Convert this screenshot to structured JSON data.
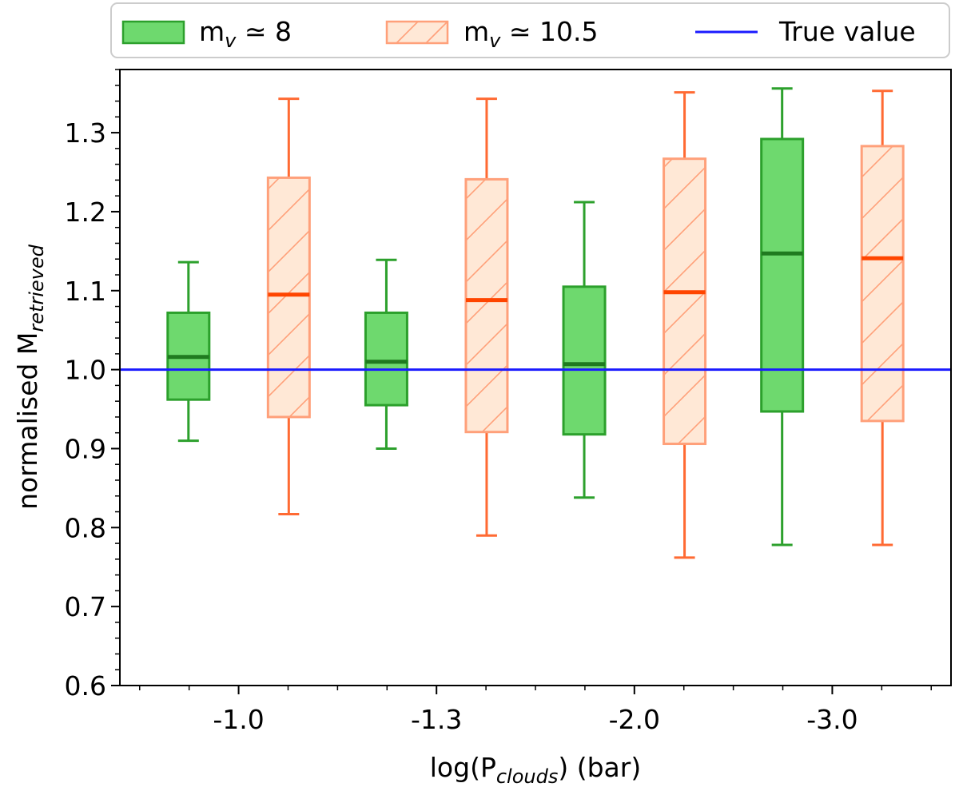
{
  "chart_data": {
    "type": "boxplot",
    "xlabel": {
      "prefix": "log(P",
      "sub": "clouds",
      "suffix": ") (bar)"
    },
    "ylabel": {
      "prefix": "normalised M",
      "sub": "retrieved"
    },
    "categories": [
      "-1.0",
      "-1.3",
      "-2.0",
      "-3.0"
    ],
    "ylim": [
      0.6,
      1.38
    ],
    "yticks": [
      "0.6",
      "0.7",
      "0.8",
      "0.9",
      "1.0",
      "1.1",
      "1.2",
      "1.3"
    ],
    "true_value": 1.0,
    "legend": {
      "location": "top",
      "entries": [
        {
          "key": "s1",
          "prefix": "m",
          "sub": "v",
          "suffix": " ≃ 8"
        },
        {
          "key": "s2",
          "prefix": "m",
          "sub": "v",
          "suffix": " ≃ 10.5"
        },
        {
          "key": "true",
          "text": "True value"
        }
      ]
    },
    "series": [
      {
        "key": "s1",
        "name": "m_v ≃ 8",
        "color": "#2ca02c",
        "fill": "#6ed96e",
        "hatched": false,
        "boxes": [
          {
            "whislo": 0.91,
            "q1": 0.962,
            "med": 1.016,
            "q3": 1.072,
            "whishi": 1.136
          },
          {
            "whislo": 0.9,
            "q1": 0.955,
            "med": 1.01,
            "q3": 1.072,
            "whishi": 1.139
          },
          {
            "whislo": 0.838,
            "q1": 0.918,
            "med": 1.007,
            "q3": 1.105,
            "whishi": 1.212
          },
          {
            "whislo": 0.778,
            "q1": 0.947,
            "med": 1.147,
            "q3": 1.292,
            "whishi": 1.356
          }
        ]
      },
      {
        "key": "s2",
        "name": "m_v ≃ 10.5",
        "color": "#ff6a33",
        "fill": "#ffe8d6",
        "hatched": true,
        "boxes": [
          {
            "whislo": 0.817,
            "q1": 0.94,
            "med": 1.095,
            "q3": 1.243,
            "whishi": 1.343
          },
          {
            "whislo": 0.79,
            "q1": 0.921,
            "med": 1.088,
            "q3": 1.241,
            "whishi": 1.343
          },
          {
            "whislo": 0.762,
            "q1": 0.906,
            "med": 1.098,
            "q3": 1.267,
            "whishi": 1.351
          },
          {
            "whislo": 0.778,
            "q1": 0.935,
            "med": 1.141,
            "q3": 1.283,
            "whishi": 1.353
          }
        ]
      }
    ],
    "true_line_color": "#1a1aff"
  }
}
